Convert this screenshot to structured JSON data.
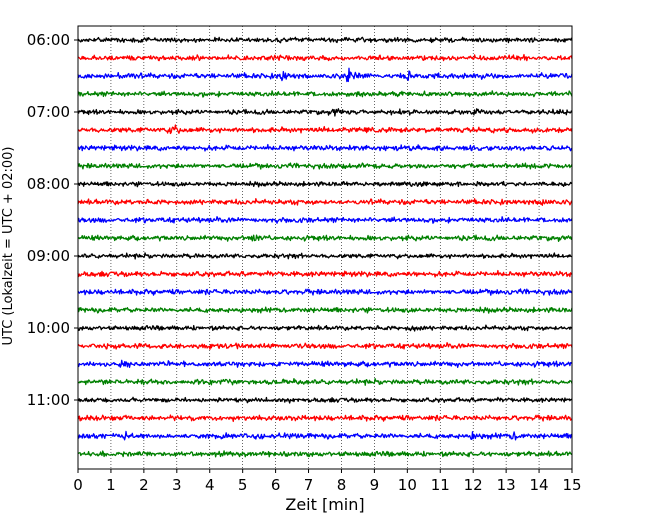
{
  "chart_data": {
    "type": "line",
    "title": "",
    "xlabel": "Zeit  [min]",
    "ylabel": "UTC (Lokalzeit = UTC + 02:00)",
    "xlim": [
      0,
      15
    ],
    "x_ticks": [
      "0",
      "1",
      "2",
      "3",
      "4",
      "5",
      "6",
      "7",
      "8",
      "9",
      "10",
      "11",
      "12",
      "13",
      "14",
      "15"
    ],
    "y_ticks": [
      "06:00",
      "07:00",
      "08:00",
      "09:00",
      "10:00",
      "11:00"
    ],
    "grid": "vertical dotted",
    "trace_interval_minutes": 15,
    "trace_start": "06:00",
    "trace_count": 24,
    "colors": [
      "#000000",
      "#ff0000",
      "#0000ff",
      "#008000"
    ],
    "events": [
      {
        "trace": 2,
        "t": 6.2,
        "amp": 0.5
      },
      {
        "trace": 2,
        "t": 8.2,
        "amp": 0.8
      },
      {
        "trace": 2,
        "t": 10.0,
        "amp": 0.3
      },
      {
        "trace": 4,
        "t": 7.8,
        "amp": 0.35
      },
      {
        "trace": 4,
        "t": 12.0,
        "amp": 0.3
      },
      {
        "trace": 5,
        "t": 2.85,
        "amp": 0.8
      },
      {
        "trace": 9,
        "t": 14.1,
        "amp": 0.5
      },
      {
        "trace": 11,
        "t": 5.3,
        "amp": 0.6
      },
      {
        "trace": 16,
        "t": 10.1,
        "amp": 0.3
      },
      {
        "trace": 18,
        "t": 1.3,
        "amp": 0.4
      },
      {
        "trace": 22,
        "t": 1.4,
        "amp": 0.35
      },
      {
        "trace": 22,
        "t": 12.0,
        "amp": 0.4
      },
      {
        "trace": 22,
        "t": 13.2,
        "amp": 0.3
      }
    ]
  }
}
